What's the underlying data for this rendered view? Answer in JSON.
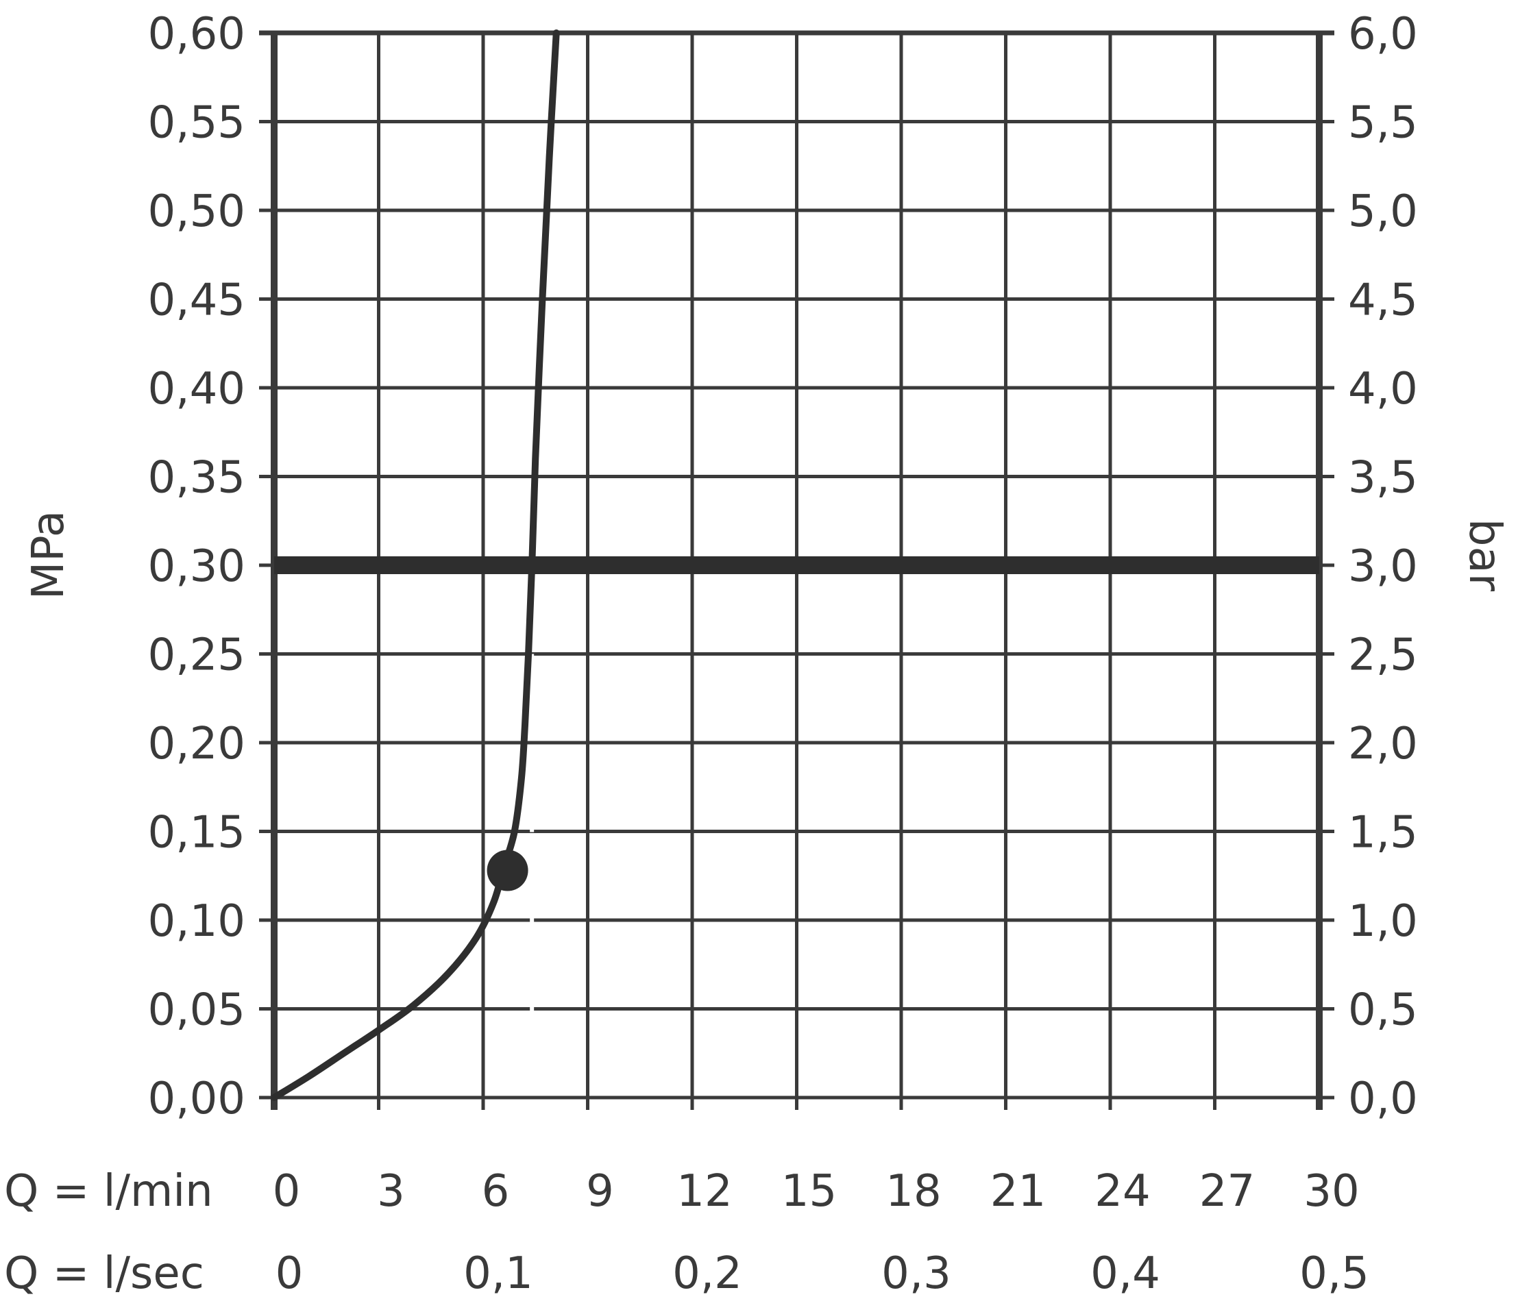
{
  "chart_data": {
    "type": "line",
    "title": "",
    "grid": true,
    "x_axis": {
      "unit_primary": "l/min",
      "unit_secondary": "l/sec",
      "label_primary": "Q = l/min",
      "label_secondary": "Q = l/sec",
      "range": [
        0,
        30
      ],
      "ticks_primary": [
        "0",
        "3",
        "6",
        "9",
        "12",
        "15",
        "18",
        "21",
        "24",
        "27",
        "30"
      ],
      "ticks_primary_values": [
        0,
        3,
        6,
        9,
        12,
        15,
        18,
        21,
        24,
        27,
        30
      ],
      "ticks_secondary": [
        "0",
        "0,1",
        "0,2",
        "0,3",
        "0,4",
        "0,5"
      ],
      "ticks_secondary_values": [
        0,
        6,
        12,
        18,
        24,
        30
      ]
    },
    "y_axis_left": {
      "label": "MPa",
      "range": [
        0,
        0.6
      ],
      "ticks": [
        "0,00",
        "0,05",
        "0,10",
        "0,15",
        "0,20",
        "0,25",
        "0,30",
        "0,35",
        "0,40",
        "0,45",
        "0,50",
        "0,55",
        "0,60"
      ],
      "tick_values": [
        0,
        0.05,
        0.1,
        0.15,
        0.2,
        0.25,
        0.3,
        0.35,
        0.4,
        0.45,
        0.5,
        0.55,
        0.6
      ]
    },
    "y_axis_right": {
      "label": "bar",
      "range": [
        0,
        6
      ],
      "ticks": [
        "0,0",
        "0,5",
        "1,0",
        "1,5",
        "2,0",
        "2,5",
        "3,0",
        "3,5",
        "4,0",
        "4,5",
        "5,0",
        "5,5",
        "6,0"
      ]
    },
    "series": [
      {
        "x": [
          0,
          1,
          2,
          3,
          4,
          5,
          5.8,
          6.3,
          6.6,
          6.9,
          7.1,
          7.2,
          7.3,
          7.4,
          7.5,
          7.7,
          7.9,
          8.1
        ],
        "y": [
          0,
          0.012,
          0.025,
          0.038,
          0.052,
          0.07,
          0.09,
          0.11,
          0.13,
          0.15,
          0.18,
          0.21,
          0.25,
          0.3,
          0.36,
          0.45,
          0.53,
          0.6
        ]
      }
    ],
    "reference_line_y": 0.3,
    "marker_point": {
      "x": 6.7,
      "y": 0.128
    },
    "dashed_line_x": 7.4,
    "colors": {
      "line": "#2e2e2e",
      "grid": "#3a3a3a",
      "dashed": "#ffffff"
    }
  }
}
